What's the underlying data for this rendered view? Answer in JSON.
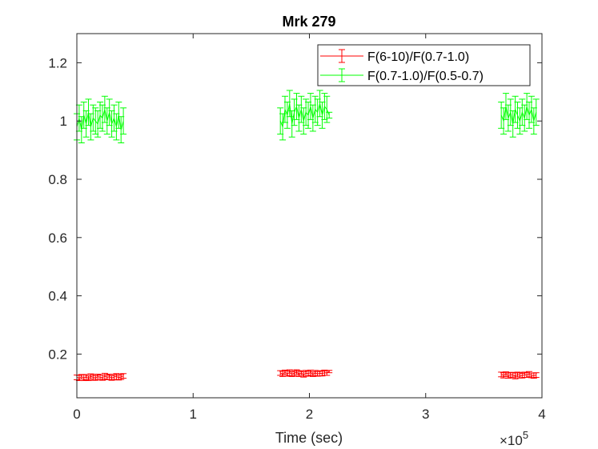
{
  "chart_data": {
    "type": "line",
    "title": "Mrk 279",
    "xlabel": "Time (sec)",
    "ylabel": "",
    "x_multiplier": "×10",
    "x_multiplier_exp": "5",
    "xlim": [
      0,
      400000
    ],
    "ylim": [
      0.05,
      1.3
    ],
    "xticks": [
      0,
      1,
      2,
      3,
      4
    ],
    "yticks": [
      0.2,
      0.4,
      0.6,
      0.8,
      1,
      1.2
    ],
    "ytick_labels": [
      "0.2",
      "0.4",
      "0.6",
      "0.8",
      "1",
      "1.2"
    ],
    "grid": false,
    "legend_position": "top-right",
    "series": [
      {
        "name": "F(6-10)/F(0.7-1.0)",
        "color": "#ff0000",
        "segments": [
          {
            "x": [
              0,
              2000,
              4000,
              6000,
              8000,
              10000,
              12000,
              14000,
              16000,
              18000,
              20000,
              22000,
              24000,
              26000,
              28000,
              30000,
              32000,
              34000,
              36000,
              38000,
              40000
            ],
            "y": [
              0.12,
              0.118,
              0.122,
              0.119,
              0.121,
              0.117,
              0.123,
              0.12,
              0.118,
              0.122,
              0.121,
              0.119,
              0.124,
              0.12,
              0.122,
              0.118,
              0.121,
              0.123,
              0.119,
              0.122,
              0.125
            ],
            "err": [
              0.008,
              0.009,
              0.008,
              0.01,
              0.009,
              0.008,
              0.009,
              0.01,
              0.008,
              0.009,
              0.008,
              0.009,
              0.01,
              0.008,
              0.009,
              0.008,
              0.009,
              0.01,
              0.008,
              0.009,
              0.008
            ]
          },
          {
            "x": [
              175000,
              177000,
              179000,
              181000,
              183000,
              185000,
              187000,
              189000,
              191000,
              193000,
              195000,
              197000,
              199000,
              201000,
              203000,
              205000,
              207000,
              209000,
              211000,
              213000,
              215000,
              217000
            ],
            "y": [
              0.135,
              0.132,
              0.137,
              0.133,
              0.136,
              0.131,
              0.134,
              0.138,
              0.132,
              0.135,
              0.13,
              0.134,
              0.133,
              0.136,
              0.131,
              0.135,
              0.132,
              0.134,
              0.133,
              0.136,
              0.135,
              0.14
            ],
            "err": [
              0.008,
              0.009,
              0.008,
              0.009,
              0.01,
              0.008,
              0.009,
              0.008,
              0.009,
              0.008,
              0.009,
              0.01,
              0.008,
              0.009,
              0.008,
              0.009,
              0.008,
              0.009,
              0.008,
              0.009,
              0.008,
              0.004
            ]
          },
          {
            "x": [
              365000,
              367000,
              369000,
              371000,
              373000,
              375000,
              377000,
              379000,
              381000,
              383000,
              385000,
              387000,
              389000,
              391000,
              393000,
              395000
            ],
            "y": [
              0.13,
              0.127,
              0.131,
              0.126,
              0.129,
              0.128,
              0.125,
              0.13,
              0.127,
              0.126,
              0.129,
              0.128,
              0.131,
              0.127,
              0.126,
              0.128
            ],
            "err": [
              0.008,
              0.009,
              0.008,
              0.009,
              0.008,
              0.009,
              0.01,
              0.008,
              0.009,
              0.008,
              0.009,
              0.008,
              0.009,
              0.008,
              0.009,
              0.008
            ]
          }
        ]
      },
      {
        "name": "F(0.7-1.0)/F(0.5-0.7)",
        "color": "#00ff00",
        "segments": [
          {
            "x": [
              0,
              2000,
              4000,
              6000,
              8000,
              10000,
              12000,
              14000,
              16000,
              18000,
              20000,
              22000,
              24000,
              26000,
              28000,
              30000,
              32000,
              34000,
              36000,
              38000,
              40000
            ],
            "y": [
              0.98,
              1.01,
              0.97,
              1.02,
              0.99,
              1.03,
              0.98,
              1.01,
              1.0,
              0.99,
              1.02,
              1.01,
              1.04,
              1.0,
              1.03,
              0.99,
              1.01,
              0.98,
              1.02,
              0.97,
              1.0
            ],
            "err": [
              0.045,
              0.045,
              0.045,
              0.045,
              0.045,
              0.045,
              0.045,
              0.045,
              0.045,
              0.045,
              0.045,
              0.045,
              0.045,
              0.045,
              0.045,
              0.045,
              0.045,
              0.045,
              0.045,
              0.045,
              0.045
            ]
          },
          {
            "x": [
              175000,
              177000,
              179000,
              181000,
              183000,
              185000,
              187000,
              189000,
              191000,
              193000,
              195000,
              197000,
              199000,
              201000,
              203000,
              205000,
              207000,
              209000,
              211000,
              213000,
              215000,
              217000
            ],
            "y": [
              1.0,
              0.98,
              1.04,
              1.02,
              1.06,
              0.99,
              1.03,
              1.05,
              1.01,
              1.04,
              1.0,
              1.03,
              1.02,
              1.05,
              1.01,
              1.04,
              1.03,
              1.06,
              1.02,
              1.05,
              1.04,
              1.02
            ],
            "err": [
              0.045,
              0.045,
              0.045,
              0.045,
              0.045,
              0.045,
              0.045,
              0.045,
              0.045,
              0.045,
              0.045,
              0.045,
              0.045,
              0.045,
              0.045,
              0.045,
              0.045,
              0.045,
              0.045,
              0.045,
              0.045,
              0.01
            ]
          },
          {
            "x": [
              365000,
              367000,
              369000,
              371000,
              373000,
              375000,
              377000,
              379000,
              381000,
              383000,
              385000,
              387000,
              389000,
              391000,
              393000,
              395000
            ],
            "y": [
              1.02,
              1.0,
              1.05,
              1.01,
              1.03,
              0.99,
              1.04,
              1.02,
              1.0,
              1.03,
              1.01,
              1.05,
              1.02,
              1.04,
              1.0,
              1.03
            ],
            "err": [
              0.045,
              0.045,
              0.045,
              0.045,
              0.045,
              0.045,
              0.045,
              0.045,
              0.045,
              0.045,
              0.045,
              0.045,
              0.045,
              0.045,
              0.045,
              0.045
            ]
          }
        ]
      }
    ]
  }
}
